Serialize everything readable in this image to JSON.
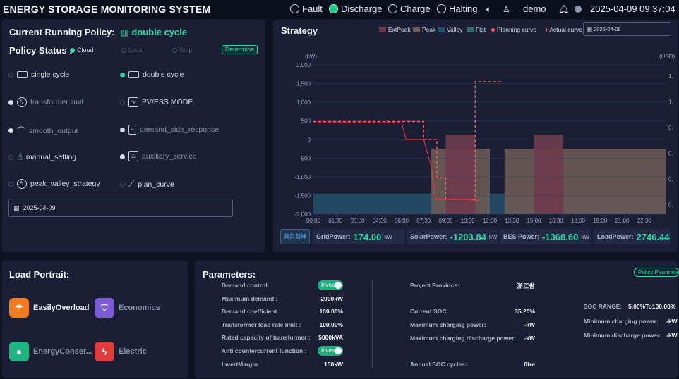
{
  "header": {
    "title": "ENERGY STORAGE MONITORING SYSTEM",
    "statuses": [
      {
        "label": "Fault",
        "active": false
      },
      {
        "label": "Discharge",
        "active": true
      },
      {
        "label": "Charge",
        "active": false
      },
      {
        "label": "Halting",
        "active": false
      }
    ],
    "user": "demo",
    "datetime": "2025-04-09 09:37:04",
    "icons": [
      "volume-icon",
      "user-icon",
      "bell-icon",
      "status-dot-icon"
    ]
  },
  "policy": {
    "current_label": "Current Running Policy:",
    "current_value": "double cycle",
    "status_label": "Policy Status :",
    "status_options": [
      {
        "label": "Cloud",
        "selected": true
      },
      {
        "label": "Local",
        "selected": false
      },
      {
        "label": "Stop",
        "selected": false
      }
    ],
    "determine_label": "Determine",
    "modes": [
      {
        "label": "single cycle",
        "selected": false
      },
      {
        "label": "double cycle",
        "selected": true
      },
      {
        "label": "transformer limit",
        "selected": false
      },
      {
        "label": "PV/ESS MODE",
        "selected": false
      },
      {
        "label": "smooth_output",
        "selected": false
      },
      {
        "label": "demand_side_response",
        "selected": false
      },
      {
        "label": "manual_setting",
        "selected": false
      },
      {
        "label": "auxiliary_service",
        "selected": false
      },
      {
        "label": "peak_valley_strategy",
        "selected": false
      },
      {
        "label": "plan_curve",
        "selected": false
      }
    ],
    "date": "2025-04-09"
  },
  "strategy": {
    "title": "Strategy",
    "date": "2025-04-09",
    "legend": [
      {
        "label": "ExtPeak",
        "color": "#6e3b4c"
      },
      {
        "label": "Peak",
        "color": "#6b5a55"
      },
      {
        "label": "Valley",
        "color": "#24506a"
      },
      {
        "label": "Flat",
        "color": "#2e6a6a"
      },
      {
        "label": "Planning curve",
        "color": "#ff5e5e"
      },
      {
        "label": "Actual curve",
        "color": "#ff5e5e"
      }
    ],
    "switch_label": "高负载峰",
    "metrics": [
      {
        "label": "GridPower:",
        "value": "174.00",
        "unit": "kW"
      },
      {
        "label": "SolarPower:",
        "value": "-1203.84",
        "unit": "kW"
      },
      {
        "label": "BES Power:",
        "value": "-1368.60",
        "unit": "kW"
      },
      {
        "label": "LoadPower:",
        "value": "2746.44",
        "unit": ""
      }
    ]
  },
  "chart_data": {
    "type": "line",
    "ylabel_left": "(kW)",
    "ylabel_right": "(USD)",
    "ylim": [
      -2000,
      2000
    ],
    "y_ticks": [
      "2,000",
      "1,500",
      "1,000",
      "500",
      "0",
      "-500",
      "-1,000",
      "-1,500",
      "-2,000"
    ],
    "y_right_ticks": [
      "1.",
      "1.",
      "0.",
      "0.",
      "0.",
      "0."
    ],
    "x_ticks": [
      "00:00",
      "01:30",
      "03:00",
      "04:30",
      "06:00",
      "07:30",
      "09:00",
      "10:30",
      "12:00",
      "13:30",
      "15:00",
      "16:30",
      "18:00",
      "19:30",
      "21:00",
      "22:30"
    ],
    "x_range_hours": [
      0,
      24
    ],
    "bands": [
      {
        "type": "Valley",
        "start": 0,
        "end": 24,
        "from": -2000,
        "to": -1450
      },
      {
        "type": "Peak",
        "start": 8,
        "end": 12,
        "from": -2000,
        "to": -250
      },
      {
        "type": "ExtPeak",
        "start": 9,
        "end": 11,
        "from": -2000,
        "to": 120
      },
      {
        "type": "Peak",
        "start": 13,
        "end": 24,
        "from": -2000,
        "to": -250
      },
      {
        "type": "ExtPeak",
        "start": 15,
        "end": 17,
        "from": -2000,
        "to": 120
      }
    ],
    "series": [
      {
        "name": "Planning curve",
        "x": [
          0,
          7.5,
          7.5,
          8.4,
          8.4,
          9,
          9,
          10.5,
          10.5,
          11,
          11,
          12.8
        ],
        "y": [
          480,
          480,
          0,
          0,
          -1020,
          -1020,
          -1600,
          -1600,
          -1600,
          -1600,
          1550,
          1550
        ]
      },
      {
        "name": "Actual curve",
        "x": [
          0,
          6,
          6.3,
          7.5,
          8,
          8.3,
          9,
          9.5,
          10.5,
          11.3
        ],
        "y": [
          450,
          450,
          0,
          0,
          -700,
          -1600,
          -1600,
          -1600,
          -1600,
          -1650
        ]
      }
    ]
  },
  "load_portrait": {
    "title": "Load Portrait:",
    "items": [
      {
        "label": "EasilyOverload",
        "color": "#f07a1e",
        "icon": "umbrella-icon",
        "active": true
      },
      {
        "label": "Economics",
        "color": "#7b5cd6",
        "icon": "shield-icon",
        "active": false
      },
      {
        "label": "EnergyConser...",
        "color": "#1fb582",
        "icon": "drop-icon",
        "active": false
      },
      {
        "label": "Electric",
        "color": "#e03b3b",
        "icon": "bolt-icon",
        "active": false
      }
    ]
  },
  "parameters": {
    "title": "Parameters:",
    "policy_params_label": "Policy Parameters",
    "left": [
      {
        "label": "Demand control :",
        "value": "Inves",
        "toggle": true
      },
      {
        "label": "Maximum demand :",
        "value": "2900kW"
      },
      {
        "label": "Demand coefficient :",
        "value": "100.00%"
      },
      {
        "label": "Transformer load rate limit :",
        "value": "100.00%"
      },
      {
        "label": "Rated capacity of transformer :",
        "value": "5000kVA"
      },
      {
        "label": "Anti countercurrent function :",
        "value": "Inves",
        "toggle": true
      },
      {
        "label": "InvertMargin :",
        "value": "150kW"
      }
    ],
    "middle": [
      {
        "label": "Project Province:",
        "value": "浙江省"
      },
      {
        "label": "Current SOC:",
        "value": "35.20%"
      },
      {
        "label": "Maximum charging power:",
        "value": "-kW"
      },
      {
        "label": "Maximum charging discharge power:",
        "value": "-kW"
      },
      {
        "label": "Annual SOC cycles:",
        "value": "0fre"
      }
    ],
    "right": [
      {
        "label": "SOC RANGE:",
        "value": "5.00%To100.00%"
      },
      {
        "label": "Minimum charging power:",
        "value": "-kW"
      },
      {
        "label": "Minimum discharge power:",
        "value": "-kW"
      }
    ]
  }
}
